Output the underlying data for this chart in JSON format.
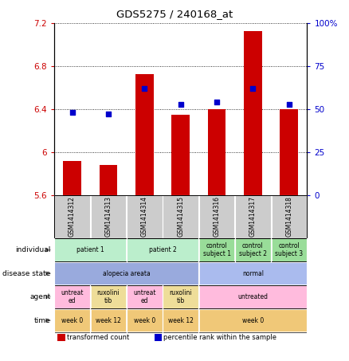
{
  "title": "GDS5275 / 240168_at",
  "samples": [
    "GSM1414312",
    "GSM1414313",
    "GSM1414314",
    "GSM1414315",
    "GSM1414316",
    "GSM1414317",
    "GSM1414318"
  ],
  "transformed_count": [
    5.92,
    5.88,
    6.73,
    6.35,
    6.4,
    7.13,
    6.4
  ],
  "percentile_rank": [
    48,
    47,
    62,
    53,
    54,
    62,
    53
  ],
  "ylim_left": [
    5.6,
    7.2
  ],
  "ylim_right": [
    0,
    100
  ],
  "yticks_left": [
    5.6,
    6.0,
    6.4,
    6.8,
    7.2
  ],
  "yticks_right": [
    0,
    25,
    50,
    75,
    100
  ],
  "ytick_labels_left": [
    "5.6",
    "6",
    "6.4",
    "6.8",
    "7.2"
  ],
  "ytick_labels_right": [
    "0",
    "25",
    "50",
    "75",
    "100%"
  ],
  "bar_color": "#cc0000",
  "dot_color": "#0000cc",
  "bar_width": 0.5,
  "sample_row_color": "#cccccc",
  "rows": [
    {
      "label": "individual",
      "cells": [
        {
          "text": "patient 1",
          "span": [
            0,
            1
          ],
          "color": "#bbeecc"
        },
        {
          "text": "patient 2",
          "span": [
            2,
            3
          ],
          "color": "#bbeecc"
        },
        {
          "text": "control\nsubject 1",
          "span": [
            4,
            4
          ],
          "color": "#99dd99"
        },
        {
          "text": "control\nsubject 2",
          "span": [
            5,
            5
          ],
          "color": "#99dd99"
        },
        {
          "text": "control\nsubject 3",
          "span": [
            6,
            6
          ],
          "color": "#99dd99"
        }
      ]
    },
    {
      "label": "disease state",
      "cells": [
        {
          "text": "alopecia areata",
          "span": [
            0,
            3
          ],
          "color": "#99aadd"
        },
        {
          "text": "normal",
          "span": [
            4,
            6
          ],
          "color": "#aabbee"
        }
      ]
    },
    {
      "label": "agent",
      "cells": [
        {
          "text": "untreat\ned",
          "span": [
            0,
            0
          ],
          "color": "#ffbbdd"
        },
        {
          "text": "ruxolini\ntib",
          "span": [
            1,
            1
          ],
          "color": "#eedd99"
        },
        {
          "text": "untreat\ned",
          "span": [
            2,
            2
          ],
          "color": "#ffbbdd"
        },
        {
          "text": "ruxolini\ntib",
          "span": [
            3,
            3
          ],
          "color": "#eedd99"
        },
        {
          "text": "untreated",
          "span": [
            4,
            6
          ],
          "color": "#ffbbdd"
        }
      ]
    },
    {
      "label": "time",
      "cells": [
        {
          "text": "week 0",
          "span": [
            0,
            0
          ],
          "color": "#f0c878"
        },
        {
          "text": "week 12",
          "span": [
            1,
            1
          ],
          "color": "#f0c878"
        },
        {
          "text": "week 0",
          "span": [
            2,
            2
          ],
          "color": "#f0c878"
        },
        {
          "text": "week 12",
          "span": [
            3,
            3
          ],
          "color": "#f0c878"
        },
        {
          "text": "week 0",
          "span": [
            4,
            6
          ],
          "color": "#f0c878"
        }
      ]
    }
  ],
  "legend": [
    {
      "color": "#cc0000",
      "label": "transformed count"
    },
    {
      "color": "#0000cc",
      "label": "percentile rank within the sample"
    }
  ],
  "bg_color": "#ffffff",
  "label_color_left": "#cc0000",
  "label_color_right": "#0000cc"
}
